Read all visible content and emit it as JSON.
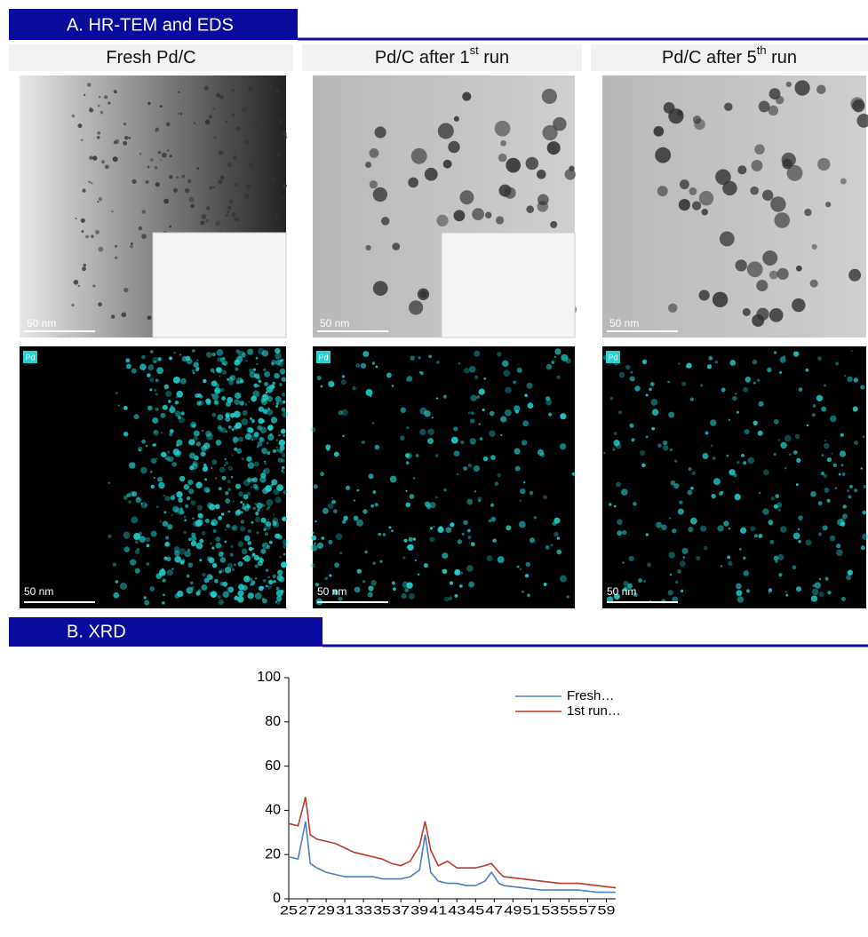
{
  "section_a": {
    "title": "A. HR-TEM and EDS"
  },
  "panels": [
    {
      "title": {
        "text": "Fresh Pd/C"
      },
      "tem_scale": "50 nm",
      "eds_label": "Pd",
      "eds_scale": "50 nm"
    },
    {
      "title": {
        "text": "Pd/C after 1",
        "sup": "st",
        "tail": " run"
      },
      "tem_scale": "50 nm",
      "eds_label": "Pd",
      "eds_scale": "50 nm"
    },
    {
      "title": {
        "text": "Pd/C after 5",
        "sup": "th",
        "tail": " run"
      },
      "tem_scale": "50 nm",
      "eds_label": "Pd",
      "eds_scale": "50 nm"
    }
  ],
  "section_b": {
    "title": "B.   XRD"
  },
  "chart_data": {
    "type": "line",
    "x": [
      25,
      26,
      26.8,
      27.3,
      28,
      29,
      30,
      31,
      32,
      33,
      34,
      35,
      36,
      37,
      38,
      39,
      39.6,
      40.2,
      41,
      42,
      43,
      44,
      45,
      46,
      46.7,
      47.5,
      48,
      50,
      52,
      54,
      56,
      58,
      60
    ],
    "series": [
      {
        "name": "Fresh…",
        "color": "#4a7fc1",
        "values": [
          19,
          18,
          35,
          16,
          14,
          12,
          11,
          10,
          10,
          10,
          10,
          9,
          9,
          9,
          10,
          13,
          29,
          12,
          8,
          7,
          7,
          6,
          6,
          8,
          12,
          7,
          6,
          5,
          4,
          4,
          4,
          3,
          3
        ]
      },
      {
        "name": "1st run…",
        "color": "#c0392b",
        "values": [
          34,
          33,
          46,
          29,
          27,
          26,
          25,
          23,
          21,
          20,
          19,
          18,
          16,
          15,
          17,
          24,
          35,
          22,
          15,
          17,
          14,
          14,
          14,
          15,
          16,
          12,
          10,
          9,
          8,
          7,
          7,
          6,
          5
        ]
      }
    ],
    "xlim": [
      25,
      60
    ],
    "xticks": [
      25,
      27,
      29,
      31,
      33,
      35,
      37,
      39,
      41,
      43,
      45,
      47,
      49,
      51,
      53,
      55,
      57,
      59
    ],
    "ylim": [
      0,
      100
    ],
    "yticks": [
      0,
      20,
      40,
      60,
      80,
      100
    ]
  }
}
